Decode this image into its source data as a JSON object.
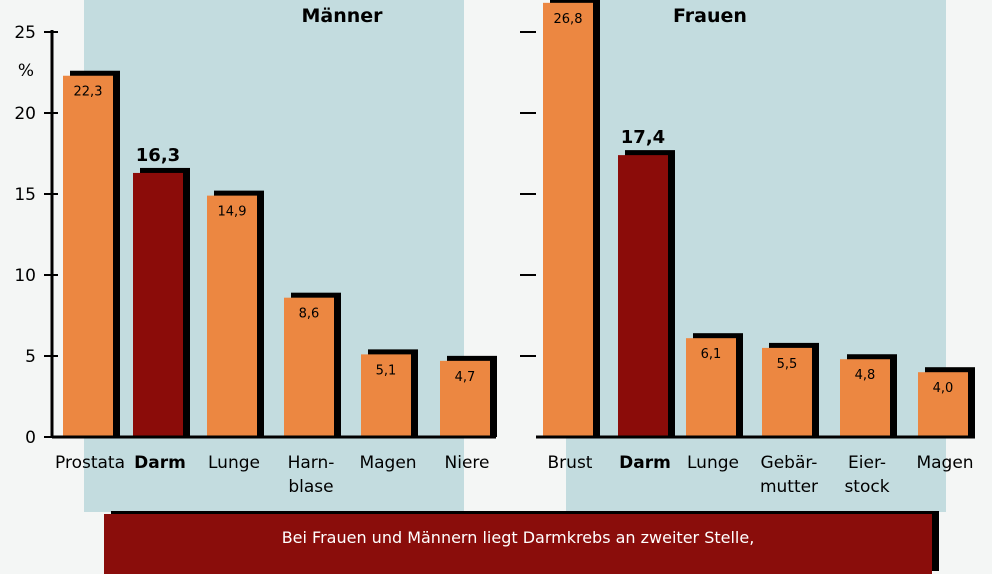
{
  "colors": {
    "bar_normal": "#ec8741",
    "bar_highlight": "#8b0c09",
    "shadow": "#000000",
    "panel": "#c3dcdf",
    "caption_bg": "#8a0d0b"
  },
  "caption": "Bei Frauen und Männern liegt Darmkrebs an zweiter Stelle,",
  "chart_data": [
    {
      "type": "bar",
      "title": "Männer",
      "y_unit": "%",
      "ylim": [
        0,
        25
      ],
      "yticks": [
        0,
        5,
        10,
        15,
        20,
        25
      ],
      "categories": [
        "Prostata",
        "Darm",
        "Lunge",
        "Harn- blase",
        "Magen",
        "Niere"
      ],
      "category_lines": [
        [
          "Prostata"
        ],
        [
          "Darm"
        ],
        [
          "Lunge"
        ],
        [
          "Harn-",
          "blase"
        ],
        [
          "Magen"
        ],
        [
          "Niere"
        ]
      ],
      "values": [
        22.3,
        16.3,
        14.9,
        8.6,
        5.1,
        4.7
      ],
      "value_labels": [
        "22,3",
        "16,3",
        "14,9",
        "8,6",
        "5,1",
        "4,7"
      ],
      "highlight": [
        false,
        true,
        false,
        false,
        false,
        false
      ]
    },
    {
      "type": "bar",
      "title": "Frauen",
      "ylim": [
        0,
        25
      ],
      "yticks": [
        5,
        10,
        15,
        20,
        25
      ],
      "categories": [
        "Brust",
        "Darm",
        "Lunge",
        "Gebär- mutter",
        "Eier- stock",
        "Magen"
      ],
      "category_lines": [
        [
          "Brust"
        ],
        [
          "Darm"
        ],
        [
          "Lunge"
        ],
        [
          "Gebär-",
          "mutter"
        ],
        [
          "Eier-",
          "stock"
        ],
        [
          "Magen"
        ]
      ],
      "values": [
        26.8,
        17.4,
        6.1,
        5.5,
        4.8,
        4.0
      ],
      "value_labels": [
        "26,8",
        "17,4",
        "6,1",
        "5,5",
        "4,8",
        "4,0"
      ],
      "highlight": [
        false,
        true,
        false,
        false,
        false,
        false
      ]
    }
  ]
}
